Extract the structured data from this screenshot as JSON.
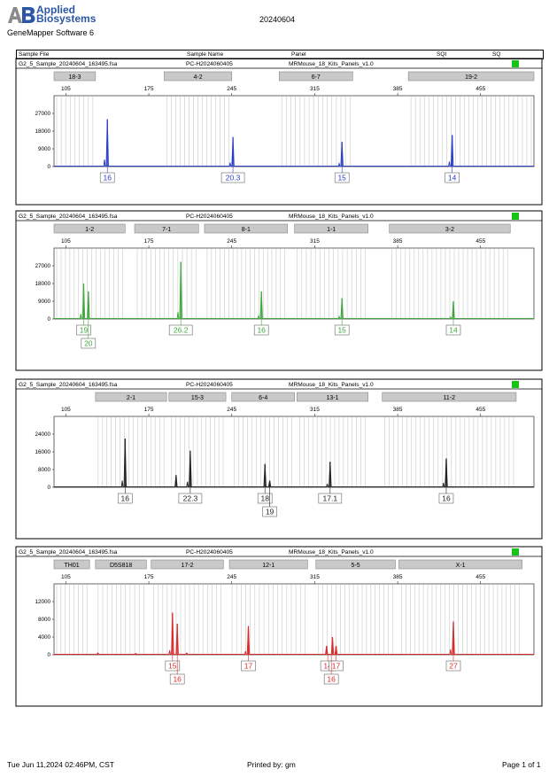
{
  "header": {
    "logo_line1": "Applied",
    "logo_line2": "Biosystems",
    "app_name": "GeneMapper Software 6",
    "run_date": "20240604"
  },
  "table_header": {
    "sample_file": "Sample File",
    "sample_name": "Sample Name",
    "panel": "Panel",
    "sqi": "SQI",
    "sq": "SQ"
  },
  "colors": {
    "blue": "#2b3fc7",
    "green": "#3fa83f",
    "black": "#222222",
    "red": "#d92b2b",
    "status": "#16c316",
    "bin_fill": "#cfcfcf"
  },
  "footer": {
    "date": "Tue Jun 11,2024 02:46PM, CST",
    "printed_by": "Printed by: gm",
    "page": "Page 1 of 1"
  },
  "chart_data": [
    {
      "type": "line",
      "channel": "blue",
      "sample_file": "G2_5_Sample_20240604_163495.fsa",
      "sample_name": "PC-H2024060405",
      "panel": "MRMouse_18_Kits_Panels_v1.0",
      "x_ticks": [
        105,
        175,
        245,
        315,
        385,
        455
      ],
      "xlim": [
        95,
        500
      ],
      "y_ticks": [
        0,
        9000,
        18000,
        27000
      ],
      "ylim": [
        0,
        36000
      ],
      "markers": [
        {
          "name": "18-3",
          "start": 95,
          "end": 130
        },
        {
          "name": "4-2",
          "start": 188,
          "end": 245
        },
        {
          "name": "6-7",
          "start": 285,
          "end": 347
        },
        {
          "name": "19-2",
          "start": 394,
          "end": 500
        }
      ],
      "peaks": [
        {
          "x": 140,
          "height": 24000,
          "stutter": 3500
        },
        {
          "x": 246,
          "height": 15000,
          "stutter": 2000
        },
        {
          "x": 338,
          "height": 12500,
          "stutter": 1500
        },
        {
          "x": 431,
          "height": 16000,
          "stutter": 2500
        }
      ],
      "calls": [
        {
          "x": 140,
          "row": 0,
          "label": "16"
        },
        {
          "x": 246,
          "row": 0,
          "label": "20.3"
        },
        {
          "x": 338,
          "row": 0,
          "label": "15"
        },
        {
          "x": 431,
          "row": 0,
          "label": "14"
        }
      ]
    },
    {
      "type": "line",
      "channel": "green",
      "sample_file": "G2_5_Sample_20240604_163495.fsa",
      "sample_name": "PC-H2024060405",
      "panel": "MRMouse_18_Kits_Panels_v1.0",
      "x_ticks": [
        105,
        175,
        245,
        315,
        385,
        455
      ],
      "xlim": [
        95,
        500
      ],
      "y_ticks": [
        0,
        9000,
        18000,
        27000
      ],
      "ylim": [
        0,
        36000
      ],
      "markers": [
        {
          "name": "1-2",
          "start": 95,
          "end": 155
        },
        {
          "name": "7-1",
          "start": 163,
          "end": 217
        },
        {
          "name": "8-1",
          "start": 222,
          "end": 292
        },
        {
          "name": "1-1",
          "start": 298,
          "end": 360
        },
        {
          "name": "3-2",
          "start": 378,
          "end": 480
        }
      ],
      "peaks": [
        {
          "x": 120,
          "height": 18000,
          "stutter": 2500
        },
        {
          "x": 124,
          "height": 14000,
          "stutter": 0
        },
        {
          "x": 202,
          "height": 29000,
          "stutter": 3500
        },
        {
          "x": 270,
          "height": 14000,
          "stutter": 1500
        },
        {
          "x": 338,
          "height": 10500,
          "stutter": 1200
        },
        {
          "x": 432,
          "height": 9000,
          "stutter": 1000
        }
      ],
      "calls": [
        {
          "x": 120,
          "row": 0,
          "label": "19"
        },
        {
          "x": 124,
          "row": 1,
          "label": "20"
        },
        {
          "x": 202,
          "row": 0,
          "label": "26.2"
        },
        {
          "x": 270,
          "row": 0,
          "label": "16"
        },
        {
          "x": 338,
          "row": 0,
          "label": "15"
        },
        {
          "x": 432,
          "row": 0,
          "label": "14"
        }
      ]
    },
    {
      "type": "line",
      "channel": "black",
      "sample_file": "G2_5_Sample_20240604_163495.fsa",
      "sample_name": "PC-H2024060405",
      "panel": "MRMouse_18_Kits_Panels_v1.0",
      "x_ticks": [
        105,
        175,
        245,
        315,
        385,
        455
      ],
      "xlim": [
        95,
        500
      ],
      "y_ticks": [
        0,
        8000,
        16000,
        24000
      ],
      "ylim": [
        0,
        32000
      ],
      "markers": [
        {
          "name": "2-1",
          "start": 130,
          "end": 190
        },
        {
          "name": "15-3",
          "start": 192,
          "end": 240
        },
        {
          "name": "6-4",
          "start": 245,
          "end": 298
        },
        {
          "name": "13-1",
          "start": 300,
          "end": 360
        },
        {
          "name": "11-2",
          "start": 372,
          "end": 485
        }
      ],
      "peaks": [
        {
          "x": 155,
          "height": 22000,
          "stutter": 3000
        },
        {
          "x": 198,
          "height": 5500,
          "stutter": 0
        },
        {
          "x": 210,
          "height": 16500,
          "stutter": 2500
        },
        {
          "x": 273,
          "height": 10500,
          "stutter": 0
        },
        {
          "x": 277,
          "height": 3000,
          "stutter": 0
        },
        {
          "x": 328,
          "height": 11500,
          "stutter": 1500
        },
        {
          "x": 426,
          "height": 13000,
          "stutter": 2000
        }
      ],
      "calls": [
        {
          "x": 155,
          "row": 0,
          "label": "16"
        },
        {
          "x": 210,
          "row": 0,
          "label": "22.3"
        },
        {
          "x": 273,
          "row": 0,
          "label": "18"
        },
        {
          "x": 277,
          "row": 1,
          "label": "19"
        },
        {
          "x": 328,
          "row": 0,
          "label": "17.1"
        },
        {
          "x": 426,
          "row": 0,
          "label": "16"
        }
      ]
    },
    {
      "type": "line",
      "channel": "red",
      "sample_file": "G2_5_Sample_20240604_163495.fsa",
      "sample_name": "PC-H2024060405",
      "panel": "MRMouse_18_Kits_Panels_v1.0",
      "x_ticks": [
        105,
        175,
        245,
        315,
        385,
        455
      ],
      "xlim": [
        95,
        500
      ],
      "y_ticks": [
        0,
        4000,
        8000,
        12000
      ],
      "ylim": [
        0,
        16000
      ],
      "markers": [
        {
          "name": "TH01",
          "start": 95,
          "end": 125
        },
        {
          "name": "D5S818",
          "start": 130,
          "end": 173
        },
        {
          "name": "17-2",
          "start": 177,
          "end": 238
        },
        {
          "name": "12-1",
          "start": 243,
          "end": 309
        },
        {
          "name": "5-5",
          "start": 316,
          "end": 383
        },
        {
          "name": "X-1",
          "start": 386,
          "end": 490
        }
      ],
      "peaks": [
        {
          "x": 132,
          "height": 400,
          "stutter": 0
        },
        {
          "x": 164,
          "height": 300,
          "stutter": 0
        },
        {
          "x": 195,
          "height": 9500,
          "stutter": 1000
        },
        {
          "x": 199,
          "height": 7000,
          "stutter": 0
        },
        {
          "x": 207,
          "height": 400,
          "stutter": 0
        },
        {
          "x": 259,
          "height": 6500,
          "stutter": 800
        },
        {
          "x": 325,
          "height": 2000,
          "stutter": 0
        },
        {
          "x": 330,
          "height": 4000,
          "stutter": 0
        },
        {
          "x": 333,
          "height": 2000,
          "stutter": 0
        },
        {
          "x": 432,
          "height": 7500,
          "stutter": 1200
        }
      ],
      "calls": [
        {
          "x": 195,
          "row": 0,
          "label": "15"
        },
        {
          "x": 199,
          "row": 1,
          "label": "16"
        },
        {
          "x": 259,
          "row": 0,
          "label": "17"
        },
        {
          "x": 326,
          "row": 0,
          "label": "14"
        },
        {
          "x": 333,
          "row": 0,
          "label": "17"
        },
        {
          "x": 329,
          "row": 1,
          "label": "16"
        },
        {
          "x": 432,
          "row": 0,
          "label": "27"
        }
      ]
    }
  ]
}
